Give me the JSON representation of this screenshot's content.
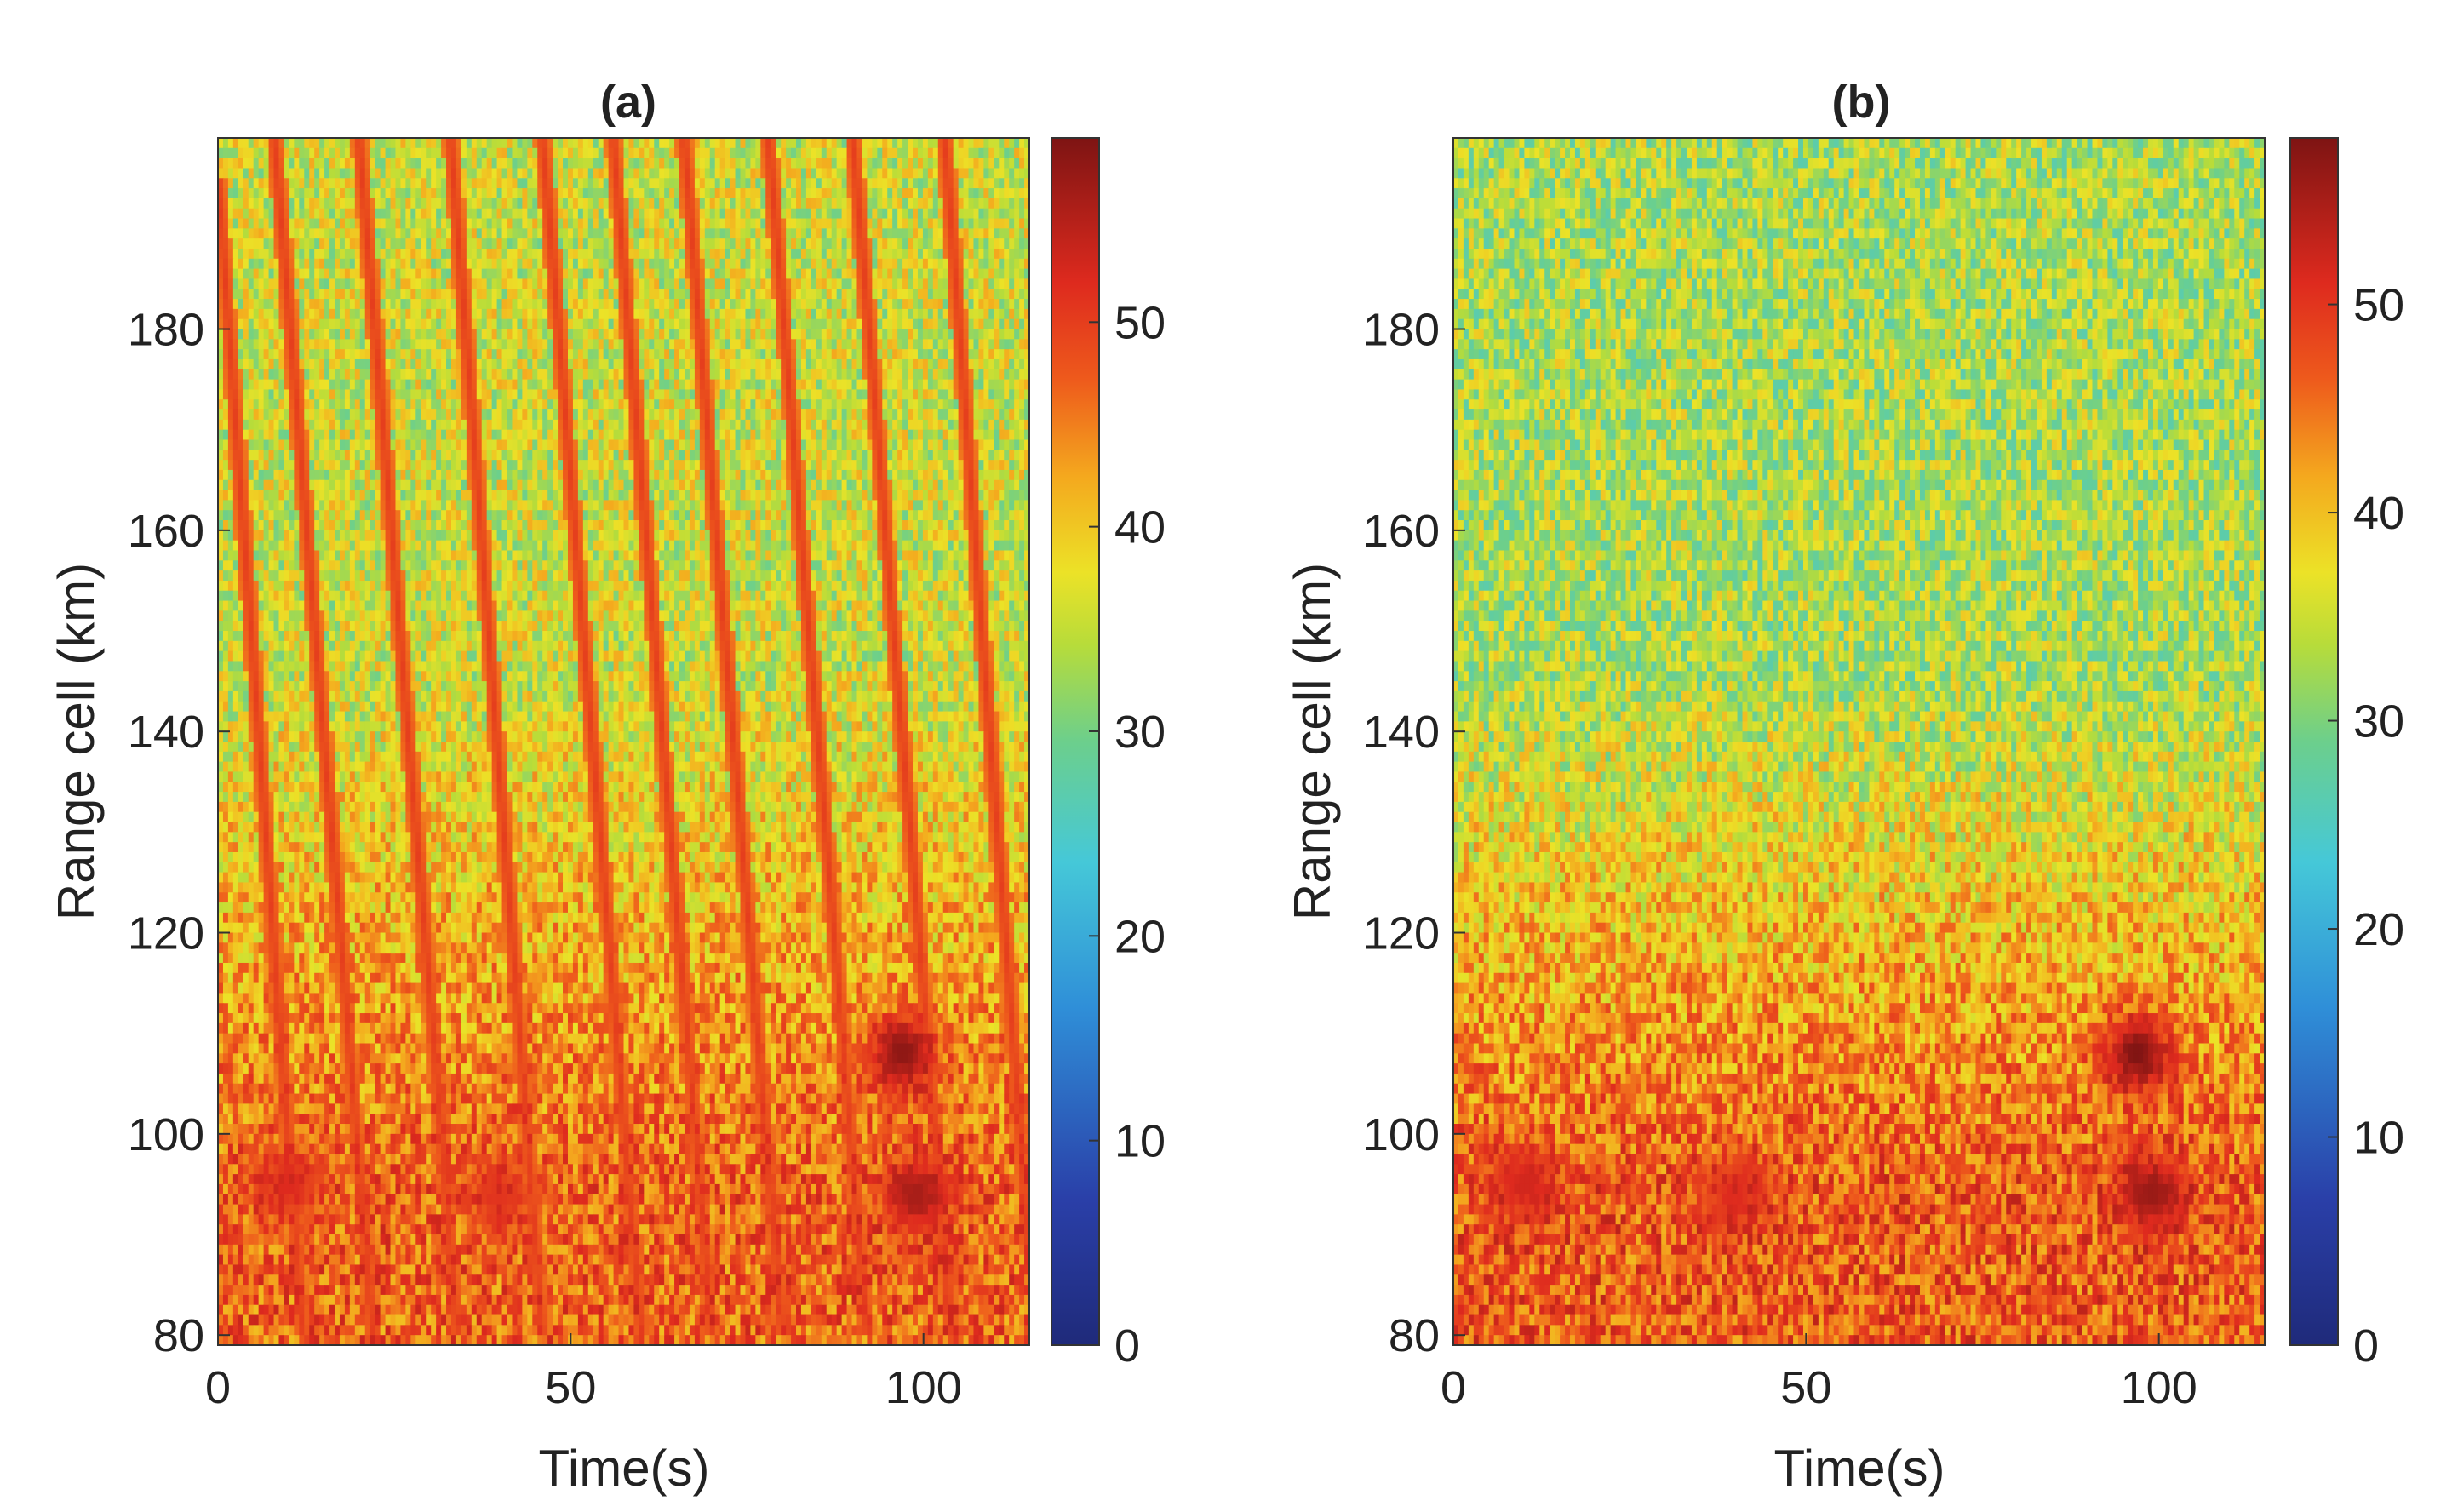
{
  "chart_data": [
    {
      "type": "heatmap",
      "title": "(a)",
      "xlabel": "Time(s)",
      "ylabel": "Range cell (km)",
      "xlim": [
        0,
        115
      ],
      "ylim": [
        79,
        199
      ],
      "xticks": [
        0,
        50,
        100
      ],
      "yticks": [
        80,
        100,
        120,
        140,
        160,
        180
      ],
      "colorbar": {
        "range": [
          0,
          59
        ],
        "ticks": [
          0,
          10,
          20,
          30,
          40,
          50
        ]
      },
      "description_values": {
        "background_level_upper_ranges": 36,
        "background_level_lower_ranges": 47,
        "strong_returns": [
          {
            "time": 97,
            "range": 108,
            "value": 58
          },
          {
            "time": 99,
            "range": 94,
            "value": 56
          },
          {
            "time": 10,
            "range": 95,
            "value": 52
          },
          {
            "time": 40,
            "range": 94,
            "value": 51
          }
        ],
        "moving_target_tracks": [
          {
            "start_time": 0,
            "start_range": 195,
            "end_time": 12,
            "end_range": 80
          },
          {
            "start_time": 8,
            "start_range": 199,
            "end_time": 22,
            "end_range": 80
          },
          {
            "start_time": 20,
            "start_range": 199,
            "end_time": 34,
            "end_range": 80
          },
          {
            "start_time": 33,
            "start_range": 199,
            "end_time": 46,
            "end_range": 80
          },
          {
            "start_time": 46,
            "start_range": 199,
            "end_time": 60,
            "end_range": 80
          },
          {
            "start_time": 56,
            "start_range": 199,
            "end_time": 70,
            "end_range": 80
          },
          {
            "start_time": 66,
            "start_range": 199,
            "end_time": 80,
            "end_range": 80
          },
          {
            "start_time": 78,
            "start_range": 199,
            "end_time": 92,
            "end_range": 80
          },
          {
            "start_time": 90,
            "start_range": 199,
            "end_time": 104,
            "end_range": 80
          },
          {
            "start_time": 103,
            "start_range": 199,
            "end_time": 115,
            "end_range": 88
          }
        ]
      }
    },
    {
      "type": "heatmap",
      "title": "(b)",
      "xlabel": "Time(s)",
      "ylabel": "Range cell (km)",
      "xlim": [
        0,
        115
      ],
      "ylim": [
        79,
        199
      ],
      "xticks": [
        0,
        50,
        100
      ],
      "yticks": [
        80,
        100,
        120,
        140,
        160,
        180
      ],
      "colorbar": {
        "range": [
          0,
          58
        ],
        "ticks": [
          0,
          10,
          20,
          30,
          40,
          50
        ]
      },
      "description_values": {
        "background_level_upper_ranges": 33,
        "background_level_lower_ranges": 47,
        "strong_returns": [
          {
            "time": 97,
            "range": 108,
            "value": 58
          },
          {
            "time": 99,
            "range": 94,
            "value": 56
          },
          {
            "time": 10,
            "range": 95,
            "value": 52
          },
          {
            "time": 40,
            "range": 94,
            "value": 51
          }
        ],
        "moving_target_tracks": []
      }
    }
  ]
}
